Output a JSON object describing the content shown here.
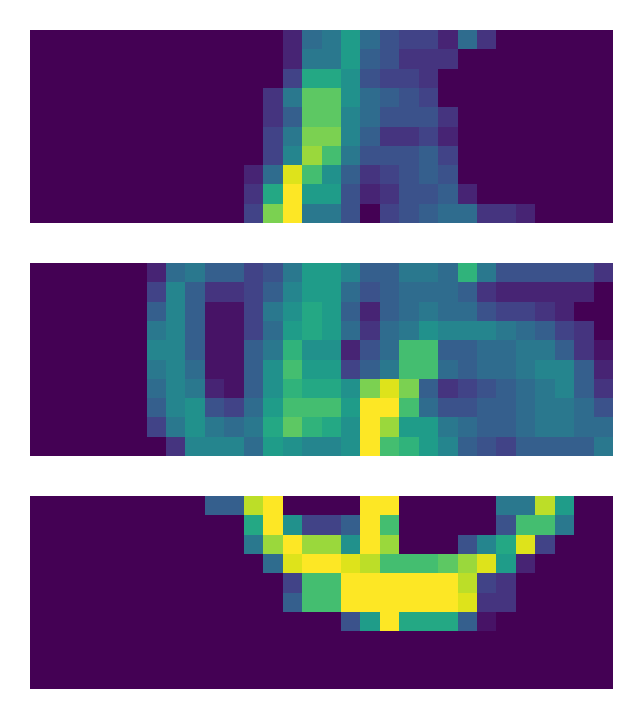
{
  "chart_data": [
    {
      "type": "heatmap",
      "color": "Viridis",
      "tick_labels": false,
      "cells": [
        [
          0,
          0,
          0,
          0,
          0,
          0,
          0,
          0,
          0,
          0,
          0,
          0,
          0,
          0.1,
          0.35,
          0.4,
          0.55,
          0.35,
          0.25,
          0.2,
          0.2,
          0.1,
          0.35,
          0.15,
          0,
          0,
          0,
          0,
          0,
          0
        ],
        [
          0,
          0,
          0,
          0,
          0,
          0,
          0,
          0,
          0,
          0,
          0,
          0,
          0,
          0.1,
          0.4,
          0.4,
          0.55,
          0.3,
          0.25,
          0.15,
          0.15,
          0.15,
          0,
          0,
          0,
          0,
          0,
          0,
          0,
          0
        ],
        [
          0,
          0,
          0,
          0,
          0,
          0,
          0,
          0,
          0,
          0,
          0,
          0,
          0,
          0.2,
          0.6,
          0.6,
          0.5,
          0.25,
          0.2,
          0.2,
          0.15,
          0,
          0,
          0,
          0,
          0,
          0,
          0,
          0,
          0
        ],
        [
          0,
          0,
          0,
          0,
          0,
          0,
          0,
          0,
          0,
          0,
          0,
          0,
          0.15,
          0.4,
          0.75,
          0.75,
          0.5,
          0.35,
          0.3,
          0.25,
          0.2,
          0,
          0,
          0,
          0,
          0,
          0,
          0,
          0,
          0
        ],
        [
          0,
          0,
          0,
          0,
          0,
          0,
          0,
          0,
          0,
          0,
          0,
          0,
          0.15,
          0.3,
          0.75,
          0.75,
          0.45,
          0.35,
          0.25,
          0.25,
          0.25,
          0.15,
          0,
          0,
          0,
          0,
          0,
          0,
          0,
          0
        ],
        [
          0,
          0,
          0,
          0,
          0,
          0,
          0,
          0,
          0,
          0,
          0,
          0,
          0.2,
          0.4,
          0.8,
          0.8,
          0.45,
          0.3,
          0.15,
          0.15,
          0.2,
          0.1,
          0,
          0,
          0,
          0,
          0,
          0,
          0,
          0
        ],
        [
          0,
          0,
          0,
          0,
          0,
          0,
          0,
          0,
          0,
          0,
          0,
          0,
          0.2,
          0.45,
          0.85,
          0.7,
          0.4,
          0.25,
          0.25,
          0.25,
          0.3,
          0.2,
          0,
          0,
          0,
          0,
          0,
          0,
          0,
          0
        ],
        [
          0,
          0,
          0,
          0,
          0,
          0,
          0,
          0,
          0,
          0,
          0,
          0.1,
          0.35,
          0.95,
          0.7,
          0.5,
          0.3,
          0.15,
          0.2,
          0.25,
          0.3,
          0.25,
          0,
          0,
          0,
          0,
          0,
          0,
          0,
          0
        ],
        [
          0,
          0,
          0,
          0,
          0,
          0,
          0,
          0,
          0,
          0,
          0,
          0.15,
          0.6,
          1,
          0.55,
          0.55,
          0.25,
          0.1,
          0.15,
          0.25,
          0.25,
          0.3,
          0.1,
          0,
          0,
          0,
          0,
          0,
          0,
          0
        ],
        [
          0,
          0,
          0,
          0,
          0,
          0,
          0,
          0,
          0,
          0,
          0,
          0.2,
          0.8,
          1,
          0.4,
          0.4,
          0.25,
          0,
          0.2,
          0.25,
          0.3,
          0.35,
          0.35,
          0.15,
          0.15,
          0.1,
          0,
          0,
          0,
          0
        ]
      ]
    },
    {
      "type": "heatmap",
      "color": "Viridis",
      "tick_labels": false,
      "cells": [
        [
          0,
          0,
          0,
          0,
          0,
          0,
          0.1,
          0.35,
          0.4,
          0.3,
          0.3,
          0.2,
          0.25,
          0.4,
          0.55,
          0.55,
          0.45,
          0.3,
          0.3,
          0.4,
          0.4,
          0.35,
          0.65,
          0.4,
          0.25,
          0.25,
          0.25,
          0.25,
          0.25,
          0.15
        ],
        [
          0,
          0,
          0,
          0,
          0,
          0,
          0.2,
          0.45,
          0.3,
          0.15,
          0.15,
          0.2,
          0.3,
          0.45,
          0.55,
          0.55,
          0.35,
          0.25,
          0.3,
          0.35,
          0.35,
          0.35,
          0.3,
          0.15,
          0.1,
          0.1,
          0.1,
          0.1,
          0.1,
          0
        ],
        [
          0,
          0,
          0,
          0,
          0,
          0,
          0.3,
          0.45,
          0.3,
          0.05,
          0.05,
          0.2,
          0.4,
          0.5,
          0.6,
          0.55,
          0.3,
          0.1,
          0.3,
          0.35,
          0.4,
          0.35,
          0.35,
          0.25,
          0.2,
          0.2,
          0.15,
          0.1,
          0,
          0
        ],
        [
          0,
          0,
          0,
          0,
          0,
          0,
          0.4,
          0.45,
          0.3,
          0.05,
          0.05,
          0.2,
          0.35,
          0.55,
          0.6,
          0.55,
          0.35,
          0.15,
          0.35,
          0.4,
          0.5,
          0.45,
          0.45,
          0.45,
          0.4,
          0.35,
          0.3,
          0.2,
          0.15,
          0
        ],
        [
          0,
          0,
          0,
          0,
          0,
          0,
          0.45,
          0.45,
          0.3,
          0.05,
          0.05,
          0.3,
          0.4,
          0.65,
          0.5,
          0.5,
          0.1,
          0.25,
          0.35,
          0.7,
          0.7,
          0.3,
          0.3,
          0.35,
          0.35,
          0.4,
          0.4,
          0.3,
          0.15,
          0.05
        ],
        [
          0,
          0,
          0,
          0,
          0,
          0,
          0.4,
          0.45,
          0.35,
          0.05,
          0.05,
          0.3,
          0.5,
          0.7,
          0.55,
          0.55,
          0.2,
          0.3,
          0.4,
          0.7,
          0.7,
          0.35,
          0.3,
          0.35,
          0.35,
          0.4,
          0.45,
          0.45,
          0.3,
          0.1
        ],
        [
          0,
          0,
          0,
          0,
          0,
          0,
          0.35,
          0.45,
          0.4,
          0.1,
          0.05,
          0.3,
          0.5,
          0.65,
          0.6,
          0.6,
          0.5,
          0.8,
          0.95,
          0.8,
          0.3,
          0.15,
          0.2,
          0.25,
          0.3,
          0.35,
          0.4,
          0.45,
          0.3,
          0.15
        ],
        [
          0,
          0,
          0,
          0,
          0,
          0,
          0.3,
          0.45,
          0.5,
          0.25,
          0.2,
          0.35,
          0.55,
          0.7,
          0.7,
          0.7,
          0.55,
          1,
          1,
          0.7,
          0.35,
          0.25,
          0.25,
          0.3,
          0.3,
          0.35,
          0.4,
          0.4,
          0.35,
          0.25
        ],
        [
          0,
          0,
          0,
          0,
          0,
          0,
          0.2,
          0.4,
          0.5,
          0.4,
          0.35,
          0.4,
          0.6,
          0.75,
          0.65,
          0.6,
          0.5,
          1,
          0.85,
          0.55,
          0.55,
          0.4,
          0.35,
          0.3,
          0.3,
          0.35,
          0.4,
          0.4,
          0.35,
          0.35
        ],
        [
          0,
          0,
          0,
          0,
          0,
          0,
          0,
          0.15,
          0.45,
          0.45,
          0.45,
          0.35,
          0.55,
          0.5,
          0.45,
          0.45,
          0.5,
          1,
          0.7,
          0.65,
          0.55,
          0.45,
          0.3,
          0.25,
          0.2,
          0.3,
          0.3,
          0.3,
          0.3,
          0.4
        ]
      ]
    },
    {
      "type": "heatmap",
      "color": "Viridis",
      "tick_labels": false,
      "cells": [
        [
          0,
          0,
          0,
          0,
          0,
          0,
          0,
          0,
          0,
          0.3,
          0.3,
          0.9,
          1,
          0,
          0,
          0,
          0,
          1,
          1,
          0,
          0,
          0,
          0,
          0,
          0.4,
          0.4,
          0.9,
          0.55,
          0,
          0
        ],
        [
          0,
          0,
          0,
          0,
          0,
          0,
          0,
          0,
          0,
          0,
          0,
          0.6,
          1,
          0.5,
          0.2,
          0.2,
          0.3,
          1,
          0.7,
          0,
          0,
          0,
          0,
          0,
          0.25,
          0.7,
          0.7,
          0.4,
          0,
          0
        ],
        [
          0,
          0,
          0,
          0,
          0,
          0,
          0,
          0,
          0,
          0,
          0,
          0.4,
          0.85,
          1,
          0.85,
          0.85,
          0.5,
          1,
          0.85,
          0,
          0,
          0,
          0.25,
          0.45,
          0.6,
          0.95,
          0.2,
          0,
          0,
          0
        ],
        [
          0,
          0,
          0,
          0,
          0,
          0,
          0,
          0,
          0,
          0,
          0,
          0,
          0.35,
          0.95,
          1,
          1,
          0.95,
          0.9,
          0.7,
          0.7,
          0.7,
          0.75,
          0.85,
          0.95,
          0.55,
          0.1,
          0,
          0,
          0,
          0
        ],
        [
          0,
          0,
          0,
          0,
          0,
          0,
          0,
          0,
          0,
          0,
          0,
          0,
          0,
          0.2,
          0.7,
          0.7,
          1,
          1,
          1,
          1,
          1,
          1,
          0.9,
          0.2,
          0.15,
          0,
          0,
          0,
          0,
          0
        ],
        [
          0,
          0,
          0,
          0,
          0,
          0,
          0,
          0,
          0,
          0,
          0,
          0,
          0,
          0.3,
          0.7,
          0.7,
          1,
          1,
          1,
          1,
          1,
          1,
          0.95,
          0.15,
          0.15,
          0,
          0,
          0,
          0,
          0
        ],
        [
          0,
          0,
          0,
          0,
          0,
          0,
          0,
          0,
          0,
          0,
          0,
          0,
          0,
          0,
          0,
          0,
          0.25,
          0.55,
          1,
          0.6,
          0.6,
          0.6,
          0.3,
          0.05,
          0,
          0,
          0,
          0,
          0,
          0
        ],
        [
          0,
          0,
          0,
          0,
          0,
          0,
          0,
          0,
          0,
          0,
          0,
          0,
          0,
          0,
          0,
          0,
          0,
          0,
          0,
          0,
          0,
          0,
          0,
          0,
          0,
          0,
          0,
          0,
          0,
          0
        ],
        [
          0,
          0,
          0,
          0,
          0,
          0,
          0,
          0,
          0,
          0,
          0,
          0,
          0,
          0,
          0,
          0,
          0,
          0,
          0,
          0,
          0,
          0,
          0,
          0,
          0,
          0,
          0,
          0,
          0,
          0
        ],
        [
          0,
          0,
          0,
          0,
          0,
          0,
          0,
          0,
          0,
          0,
          0,
          0,
          0,
          0,
          0,
          0,
          0,
          0,
          0,
          0,
          0,
          0,
          0,
          0,
          0,
          0,
          0,
          0,
          0,
          0
        ]
      ]
    }
  ]
}
